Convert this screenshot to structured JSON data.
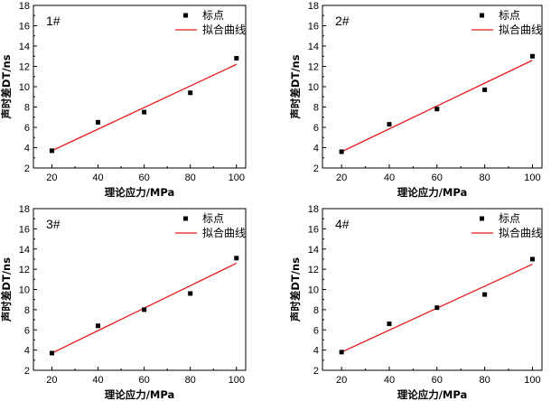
{
  "colors": {
    "fit_line": "#e41a1c",
    "marker": "#000000",
    "axis": "#000000"
  },
  "legend": {
    "marker_label": "标点",
    "line_label": "拟合曲线"
  },
  "chart_data": [
    {
      "type": "scatter",
      "title": "1#",
      "xlabel": "理论应力/MPa",
      "ylabel": "声时差DT/ns",
      "xlim": [
        12,
        104
      ],
      "ylim": [
        2,
        18
      ],
      "xticks": [
        20,
        40,
        60,
        80,
        100
      ],
      "yticks": [
        2,
        4,
        6,
        8,
        10,
        12,
        14,
        16,
        18
      ],
      "series": [
        {
          "name": "标点",
          "x": [
            20,
            40,
            60,
            80,
            100
          ],
          "y": [
            3.7,
            6.5,
            7.5,
            9.4,
            12.8
          ]
        },
        {
          "name": "拟合曲线",
          "x": [
            20,
            100
          ],
          "y": [
            3.7,
            12.2
          ]
        }
      ]
    },
    {
      "type": "scatter",
      "title": "2#",
      "xlabel": "理论应力/MPa",
      "ylabel": "声时差DT/ns",
      "xlim": [
        12,
        104
      ],
      "ylim": [
        2,
        18
      ],
      "xticks": [
        20,
        40,
        60,
        80,
        100
      ],
      "yticks": [
        2,
        4,
        6,
        8,
        10,
        12,
        14,
        16,
        18
      ],
      "series": [
        {
          "name": "标点",
          "x": [
            20,
            40,
            60,
            80,
            100
          ],
          "y": [
            3.6,
            6.3,
            7.8,
            9.7,
            13.0
          ]
        },
        {
          "name": "拟合曲线",
          "x": [
            20,
            100
          ],
          "y": [
            3.6,
            12.6
          ]
        }
      ]
    },
    {
      "type": "scatter",
      "title": "3#",
      "xlabel": "理论应力/MPa",
      "ylabel": "声时差DT/ns",
      "xlim": [
        12,
        104
      ],
      "ylim": [
        2,
        18
      ],
      "xticks": [
        20,
        40,
        60,
        80,
        100
      ],
      "yticks": [
        2,
        4,
        6,
        8,
        10,
        12,
        14,
        16,
        18
      ],
      "series": [
        {
          "name": "标点",
          "x": [
            20,
            40,
            60,
            80,
            100
          ],
          "y": [
            3.7,
            6.4,
            8.0,
            9.6,
            13.1
          ]
        },
        {
          "name": "拟合曲线",
          "x": [
            20,
            100
          ],
          "y": [
            3.7,
            12.6
          ]
        }
      ]
    },
    {
      "type": "scatter",
      "title": "4#",
      "xlabel": "理论应力/MPa",
      "ylabel": "声时差DT/ns",
      "xlim": [
        12,
        104
      ],
      "ylim": [
        2,
        18
      ],
      "xticks": [
        20,
        40,
        60,
        80,
        100
      ],
      "yticks": [
        2,
        4,
        6,
        8,
        10,
        12,
        14,
        16,
        18
      ],
      "series": [
        {
          "name": "标点",
          "x": [
            20,
            40,
            60,
            80,
            100
          ],
          "y": [
            3.8,
            6.6,
            8.2,
            9.5,
            13.0
          ]
        },
        {
          "name": "拟合曲线",
          "x": [
            20,
            100
          ],
          "y": [
            3.8,
            12.5
          ]
        }
      ]
    }
  ]
}
